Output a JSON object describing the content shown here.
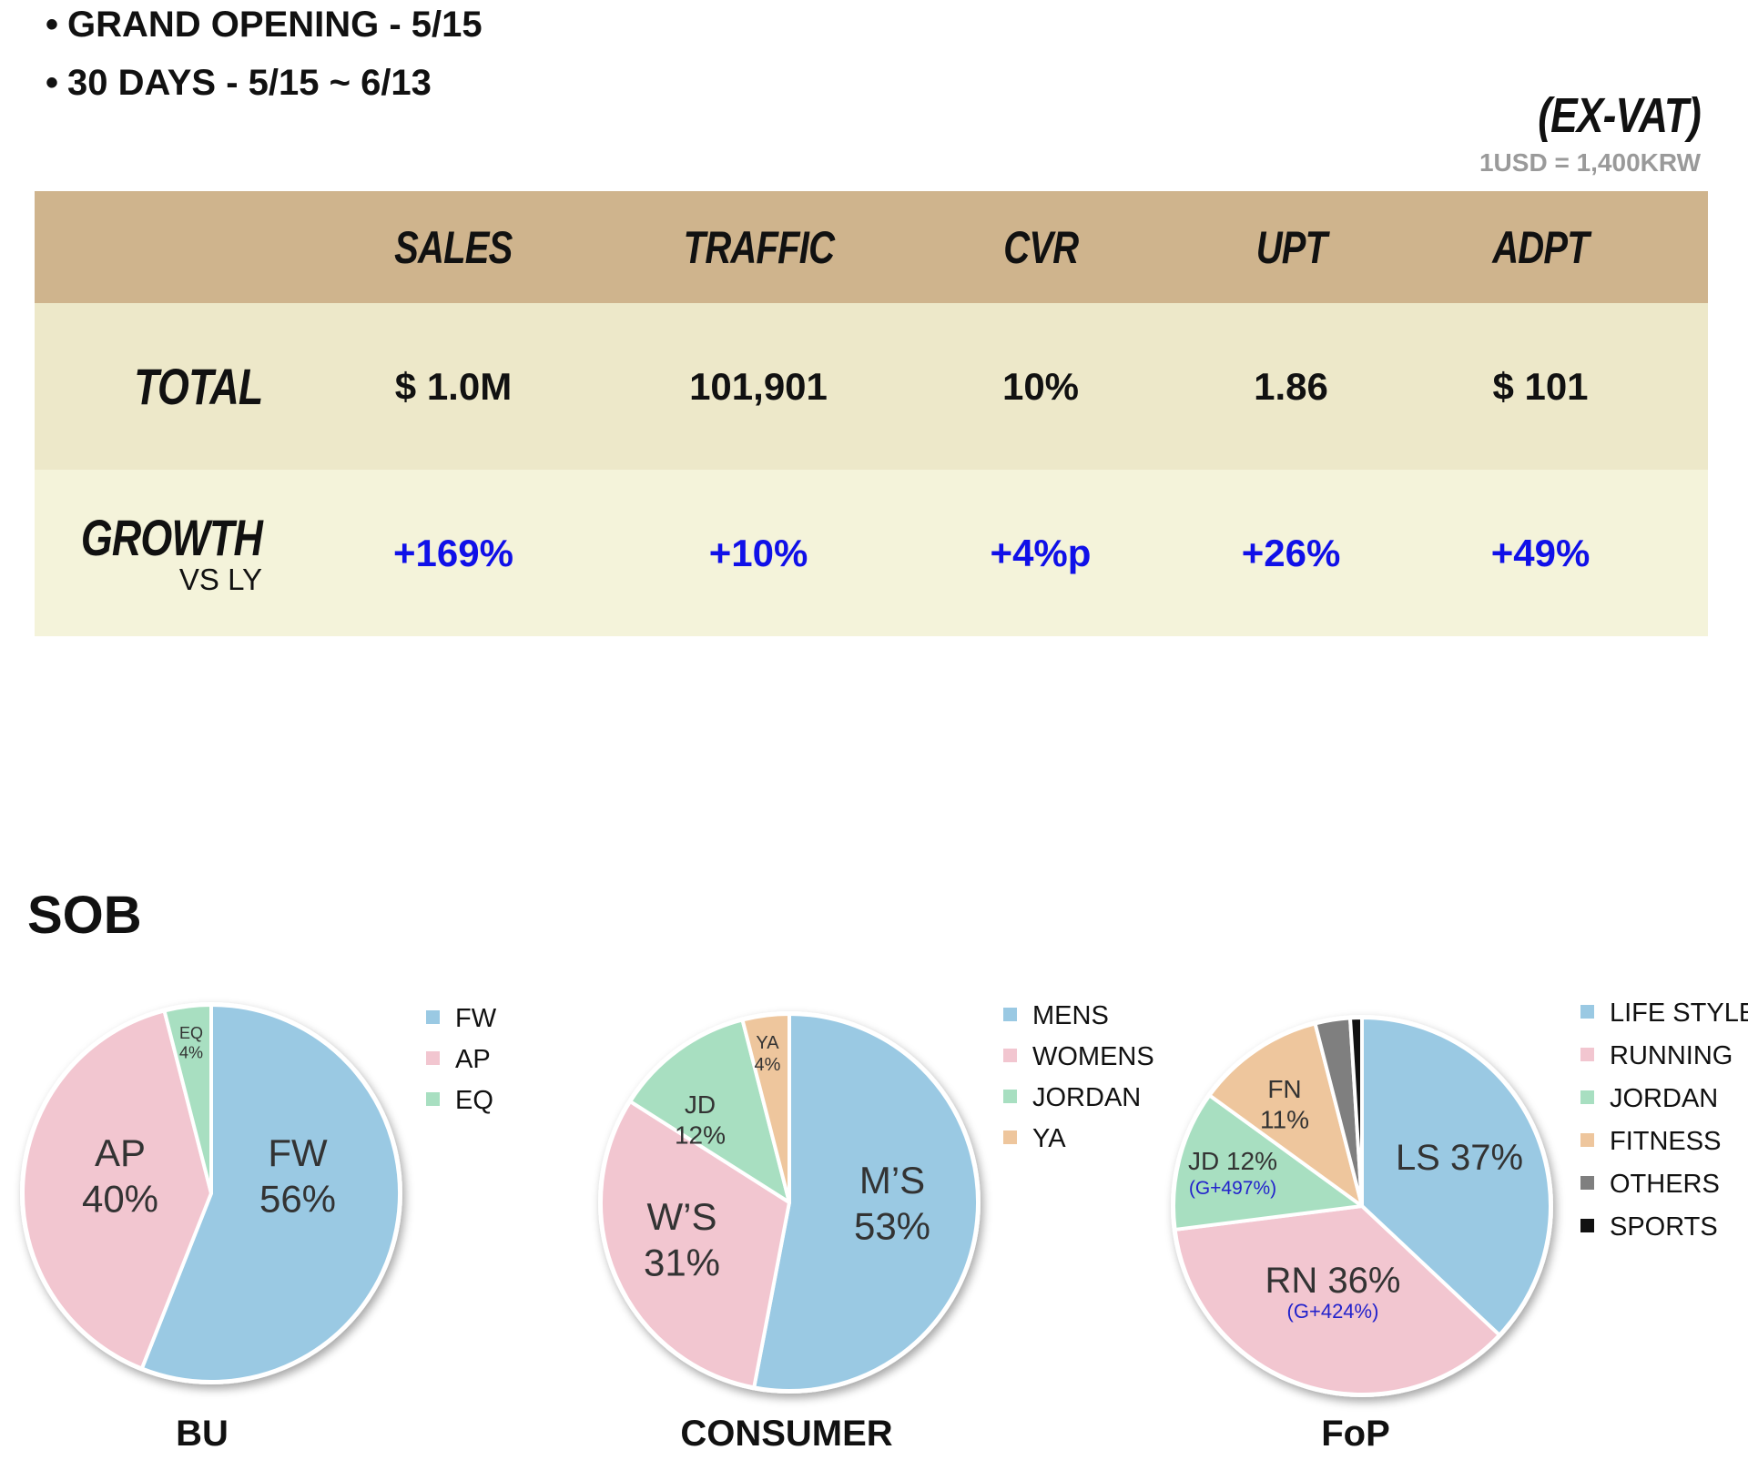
{
  "bullets": [
    "GRAND OPENING - 5/15",
    "30 DAYS - 5/15 ~ 6/13"
  ],
  "note": {
    "title": "(EX-VAT)",
    "fx": "1USD = 1,400KRW"
  },
  "table": {
    "headers": [
      "SALES",
      "TRAFFIC",
      "CVR",
      "UPT",
      "ADPT"
    ],
    "total": {
      "label": "TOTAL",
      "values": [
        "$ 1.0M",
        "101,901",
        "10%",
        "1.86",
        "$ 101"
      ]
    },
    "growth": {
      "label": "GROWTH",
      "sublabel": "VS LY",
      "values": [
        "+169%",
        "+10%",
        "+4%p",
        "+26%",
        "+49%"
      ]
    }
  },
  "section_title": "SOB",
  "colors": {
    "blue": "#9ac9e3",
    "pink": "#f2c6d0",
    "green": "#a8dfc1",
    "orange": "#eec69d",
    "gray": "#7f7f7f",
    "black": "#111111",
    "header": "#cfb48d",
    "growth_text": "#1010e8"
  },
  "chart_data": [
    {
      "type": "pie",
      "title": "BU",
      "slices": [
        {
          "legend": "FW",
          "label": "FW",
          "value": 56,
          "color": "#9ac9e3"
        },
        {
          "legend": "AP",
          "label": "AP",
          "value": 40,
          "color": "#f2c6d0"
        },
        {
          "legend": "EQ",
          "label": "EQ",
          "value": 4,
          "color": "#a8dfc1"
        }
      ]
    },
    {
      "type": "pie",
      "title": "CONSUMER",
      "slices": [
        {
          "legend": "MENS",
          "label": "M’S",
          "value": 53,
          "color": "#9ac9e3"
        },
        {
          "legend": "WOMENS",
          "label": "W’S",
          "value": 31,
          "color": "#f2c6d0"
        },
        {
          "legend": "JORDAN",
          "label": "JD",
          "value": 12,
          "color": "#a8dfc1"
        },
        {
          "legend": "YA",
          "label": "YA",
          "value": 4,
          "color": "#eec69d"
        }
      ]
    },
    {
      "type": "pie",
      "title": "FoP",
      "slices": [
        {
          "legend": "LIFE STYLE",
          "label": "LS",
          "value": 37,
          "color": "#9ac9e3"
        },
        {
          "legend": "RUNNING",
          "label": "RN",
          "value": 36,
          "growth": "(G+424%)",
          "color": "#f2c6d0"
        },
        {
          "legend": "JORDAN",
          "label": "JD",
          "value": 12,
          "growth": "(G+497%)",
          "color": "#a8dfc1"
        },
        {
          "legend": "FITNESS",
          "label": "FN",
          "value": 11,
          "color": "#eec69d"
        },
        {
          "legend": "OTHERS",
          "value": 3,
          "color": "#7f7f7f"
        },
        {
          "legend": "SPORTS",
          "value": 1,
          "color": "#111111"
        }
      ]
    }
  ]
}
